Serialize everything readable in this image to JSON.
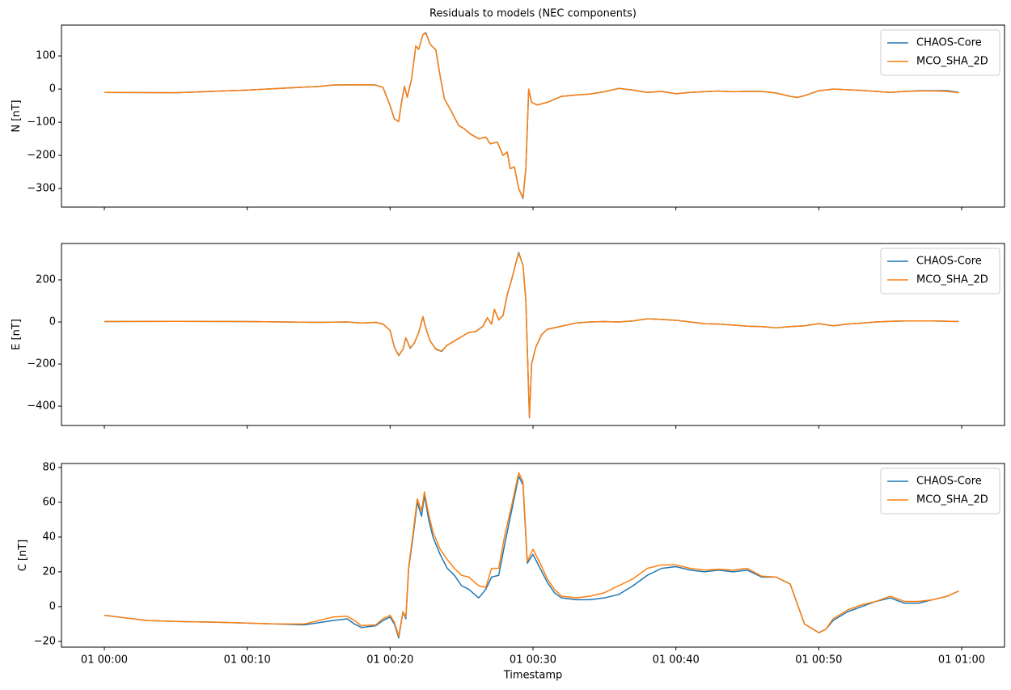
{
  "chart_data": [
    {
      "type": "line",
      "title": "Residuals to models (NEC components)",
      "ylabel": "N [nT]",
      "legend": "upper right",
      "xlim": [
        -3,
        63
      ],
      "xticks": [
        0,
        10,
        20,
        30,
        40,
        50,
        60
      ],
      "ylim": [
        -356,
        193
      ],
      "yticks": [
        {
          "value": -300,
          "label": "−300"
        },
        {
          "value": -200,
          "label": "−200"
        },
        {
          "value": -100,
          "label": "−100"
        },
        0,
        100
      ],
      "x": [
        0,
        5,
        10,
        15,
        16,
        18,
        19,
        19.5,
        20,
        20.3,
        20.6,
        20.8,
        21,
        21.2,
        21.5,
        21.8,
        22,
        22.3,
        22.5,
        22.8,
        23.2,
        23.5,
        23.8,
        24.2,
        24.8,
        25.2,
        25.6,
        26.2,
        26.7,
        27,
        27.5,
        27.9,
        28.2,
        28.4,
        28.7,
        29,
        29.3,
        29.5,
        29.7,
        29.9,
        30.3,
        31,
        32,
        33,
        34,
        35,
        36,
        37,
        38,
        39,
        40,
        41,
        42,
        43,
        44,
        45,
        46,
        47,
        48,
        48.5,
        49,
        50,
        51,
        52,
        53,
        54,
        55,
        56,
        57,
        58,
        59,
        59.8
      ],
      "series": [
        {
          "name": "CHAOS-Core",
          "color": "#1f77b4",
          "values": [
            -10,
            -11,
            -3,
            8,
            12,
            13,
            12,
            5,
            -50,
            -90,
            -98,
            -40,
            8,
            -25,
            30,
            130,
            120,
            165,
            170,
            135,
            118,
            40,
            -30,
            -60,
            -110,
            -120,
            -135,
            -150,
            -145,
            -165,
            -160,
            -200,
            -190,
            -240,
            -235,
            -300,
            -330,
            -240,
            0,
            -40,
            -48,
            -40,
            -22,
            -18,
            -15,
            -8,
            2,
            -3,
            -10,
            -7,
            -14,
            -10,
            -8,
            -6,
            -8,
            -7,
            -7,
            -12,
            -22,
            -25,
            -20,
            -5,
            0,
            -2,
            -4,
            -7,
            -10,
            -7,
            -5,
            -5,
            -5,
            -10
          ]
        },
        {
          "name": "MCO_SHA_2D",
          "color": "#ff7f0e",
          "values": [
            -10,
            -11,
            -3,
            8,
            12,
            13,
            12,
            5,
            -50,
            -90,
            -98,
            -40,
            8,
            -25,
            30,
            130,
            120,
            165,
            168,
            135,
            118,
            40,
            -30,
            -60,
            -110,
            -120,
            -135,
            -150,
            -145,
            -165,
            -160,
            -200,
            -190,
            -240,
            -235,
            -300,
            -328,
            -240,
            0,
            -40,
            -48,
            -40,
            -22,
            -18,
            -15,
            -8,
            2,
            -3,
            -10,
            -7,
            -14,
            -10,
            -8,
            -6,
            -8,
            -7,
            -7,
            -12,
            -22,
            -25,
            -20,
            -5,
            0,
            -2,
            -4,
            -7,
            -10,
            -7,
            -6,
            -6,
            -7,
            -11
          ]
        }
      ]
    },
    {
      "type": "line",
      "ylabel": "E [nT]",
      "legend": "upper right",
      "xlim": [
        -3,
        63
      ],
      "xticks": [
        0,
        10,
        20,
        30,
        40,
        50,
        60
      ],
      "ylim": [
        -492,
        373
      ],
      "yticks": [
        {
          "value": -400,
          "label": "−400"
        },
        {
          "value": -200,
          "label": "−200"
        },
        0,
        200
      ],
      "x": [
        0,
        5,
        10,
        15,
        17,
        18,
        19,
        19.5,
        20,
        20.3,
        20.6,
        20.9,
        21.1,
        21.4,
        21.7,
        22,
        22.3,
        22.5,
        22.8,
        23.2,
        23.6,
        24,
        24.5,
        25,
        25.5,
        26,
        26.5,
        26.8,
        27.1,
        27.3,
        27.6,
        27.9,
        28.2,
        28.5,
        28.8,
        29,
        29.3,
        29.5,
        29.75,
        29.9,
        30.2,
        30.6,
        31,
        32,
        33,
        34,
        35,
        36,
        37,
        38,
        39,
        40,
        41,
        42,
        43,
        44,
        45,
        46,
        47,
        48,
        49,
        50,
        51,
        52,
        53,
        54,
        55,
        56,
        57,
        58,
        59.8
      ],
      "series": [
        {
          "name": "CHAOS-Core",
          "color": "#1f77b4",
          "values": [
            2,
            3,
            2,
            -2,
            0,
            -5,
            -2,
            -10,
            -40,
            -120,
            -160,
            -130,
            -75,
            -125,
            -100,
            -50,
            25,
            -30,
            -90,
            -130,
            -140,
            -110,
            -90,
            -70,
            -50,
            -45,
            -20,
            20,
            -10,
            60,
            10,
            30,
            130,
            200,
            280,
            330,
            270,
            100,
            -455,
            -200,
            -120,
            -60,
            -35,
            -20,
            -5,
            0,
            2,
            0,
            5,
            15,
            12,
            8,
            0,
            -8,
            -10,
            -15,
            -20,
            -22,
            -28,
            -22,
            -18,
            -8,
            -18,
            -10,
            -5,
            0,
            3,
            5,
            5,
            5,
            2
          ]
        },
        {
          "name": "MCO_SHA_2D",
          "color": "#ff7f0e",
          "values": [
            2,
            3,
            2,
            -2,
            0,
            -5,
            -2,
            -10,
            -40,
            -120,
            -158,
            -130,
            -75,
            -123,
            -100,
            -50,
            25,
            -30,
            -90,
            -128,
            -138,
            -110,
            -90,
            -70,
            -50,
            -45,
            -20,
            20,
            -10,
            60,
            10,
            30,
            130,
            200,
            280,
            325,
            270,
            100,
            -452,
            -200,
            -120,
            -60,
            -35,
            -20,
            -5,
            0,
            2,
            0,
            5,
            15,
            12,
            8,
            0,
            -8,
            -10,
            -15,
            -20,
            -22,
            -28,
            -22,
            -18,
            -8,
            -18,
            -10,
            -5,
            0,
            3,
            5,
            5,
            5,
            2
          ]
        }
      ]
    },
    {
      "type": "line",
      "ylabel": "C [nT]",
      "xlabel": "Timestamp",
      "legend": "upper right",
      "xlim": [
        -3,
        63
      ],
      "xticks": [
        {
          "value": 0,
          "label": "01 00:00"
        },
        {
          "value": 10,
          "label": "01 00:10"
        },
        {
          "value": 20,
          "label": "01 00:20"
        },
        {
          "value": 30,
          "label": "01 00:30"
        },
        {
          "value": 40,
          "label": "01 00:40"
        },
        {
          "value": 50,
          "label": "01 00:50"
        },
        {
          "value": 60,
          "label": "01 01:00"
        }
      ],
      "ylim": [
        -23.3,
        82.3
      ],
      "yticks": [
        {
          "value": -20,
          "label": "−20"
        },
        0,
        20,
        40,
        60,
        80
      ],
      "x": [
        0,
        1,
        3,
        5,
        8,
        12,
        14,
        16,
        17,
        17.5,
        18,
        19,
        19.5,
        20,
        20.3,
        20.6,
        20.9,
        21.1,
        21.3,
        21.6,
        21.9,
        22.2,
        22.4,
        22.7,
        23,
        23.5,
        24,
        24.5,
        25,
        25.5,
        26.2,
        26.7,
        27.1,
        27.6,
        28,
        28.5,
        29,
        29.3,
        29.6,
        30,
        30.5,
        31,
        31.5,
        32,
        33,
        34,
        35,
        36,
        37,
        38,
        39,
        40,
        41,
        42,
        43,
        44,
        45,
        46,
        47,
        48,
        49,
        50,
        50.5,
        51,
        52,
        53,
        54,
        55,
        56,
        57,
        58,
        59,
        59.8
      ],
      "series": [
        {
          "name": "CHAOS-Core",
          "color": "#1f77b4",
          "values": [
            -5,
            -6,
            -8,
            -8.5,
            -9,
            -10,
            -10.5,
            -8,
            -7,
            -10,
            -12,
            -11,
            -8,
            -6,
            -10,
            -18,
            -3,
            -7,
            22,
            40,
            60,
            52,
            64,
            50,
            40,
            30,
            22,
            18,
            12,
            10,
            5,
            10,
            17,
            18,
            35,
            55,
            75,
            70,
            25,
            30,
            22,
            14,
            8,
            5,
            4,
            4,
            5,
            7,
            12,
            18,
            22,
            23,
            21,
            20,
            21,
            20,
            21,
            17,
            17,
            13,
            -10,
            -15,
            -13,
            -8,
            -3,
            0,
            3,
            5,
            2,
            2,
            4,
            6,
            9
          ]
        },
        {
          "name": "MCO_SHA_2D",
          "color": "#ff7f0e",
          "values": [
            -5,
            -6,
            -8,
            -8.5,
            -9,
            -10,
            -10,
            -6,
            -5.5,
            -8,
            -11,
            -10.5,
            -7,
            -5,
            -9,
            -17,
            -3,
            -6,
            23,
            42,
            62,
            55,
            66,
            53,
            43,
            33,
            27,
            22,
            18,
            17,
            12,
            11,
            22,
            22,
            40,
            58,
            77,
            72,
            26,
            33,
            25,
            16,
            10,
            6,
            5,
            6,
            8,
            12,
            16,
            22,
            24,
            24,
            22,
            21,
            21.5,
            21,
            22,
            17.5,
            17,
            13,
            -10,
            -15,
            -13,
            -7,
            -2,
            1,
            3,
            6,
            3,
            3,
            4,
            6,
            9
          ]
        }
      ]
    }
  ]
}
